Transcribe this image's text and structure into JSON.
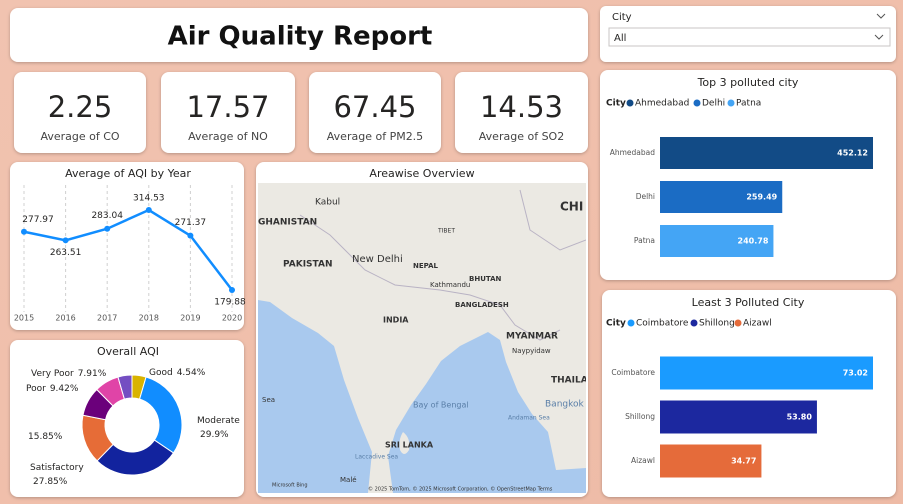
{
  "header": {
    "title": "Air Quality Report"
  },
  "filter": {
    "label": "City",
    "value": "All"
  },
  "kpis": [
    {
      "value": 2.25,
      "label": "Average of CO"
    },
    {
      "value": 17.57,
      "label": "Average of NO"
    },
    {
      "value": 67.45,
      "label": "Average of PM2.5"
    },
    {
      "value": 14.53,
      "label": "Average of SO2"
    }
  ],
  "chart_data": [
    {
      "type": "line",
      "title": "Average of AQI by Year",
      "categories": [
        "2015",
        "2016",
        "2017",
        "2018",
        "2019",
        "2020"
      ],
      "values": [
        277.97,
        263.51,
        283.04,
        314.53,
        271.37,
        179.88
      ],
      "color": "#118dff"
    },
    {
      "type": "donut",
      "title": "Overall AQI",
      "categories": [
        "Good",
        "Moderate",
        "Satisfactory",
        null,
        "Poor",
        "Very Poor",
        null
      ],
      "values": [
        4.54,
        29.9,
        27.85,
        15.85,
        9.42,
        7.91,
        4.53
      ],
      "value_labels": [
        "4.54%",
        "29.9%",
        "27.85%",
        "15.85%",
        "9.42%",
        "7.91%",
        null
      ],
      "colors": [
        "#d9b300",
        "#118dff",
        "#12239e",
        "#e66c37",
        "#6b007b",
        "#e044a7",
        "#744ec2"
      ]
    },
    {
      "type": "bar",
      "title": "Top 3 polluted city",
      "legend_title": "City",
      "categories": [
        "Ahmedabad",
        "Delhi",
        "Patna"
      ],
      "values": [
        452.12,
        259.49,
        240.78
      ],
      "colors": [
        "#124b86",
        "#1b6cc4",
        "#44a5f5"
      ]
    },
    {
      "type": "bar",
      "title": "Least 3 Polluted City",
      "legend_title": "City",
      "categories": [
        "Coimbatore",
        "Shillong",
        "Aizawl"
      ],
      "values": [
        73.02,
        53.8,
        34.77
      ],
      "value_labels": [
        "73.02",
        "53.80",
        "34.77"
      ],
      "colors": [
        "#1a9bff",
        "#1c289f",
        "#e56b3a"
      ]
    }
  ],
  "map": {
    "title": "Areawise Overview",
    "labels": [
      "Kabul",
      "GHANISTAN",
      "TIBET",
      "CHI",
      "PAKISTAN",
      "New Delhi",
      "NEPAL",
      "Kathmandu",
      "BHUTAN",
      "BANGLADESH",
      "INDIA",
      "MYANMAR",
      "Naypyidaw",
      "Sea",
      "Bay of Bengal",
      "THAILA",
      "Bangkok",
      "SRI LANKA",
      "Andaman Sea",
      "Laccadive Sea",
      "Malé",
      "Microsoft Bing",
      "© 2025 TomTom, © 2025 Microsoft Corporation, © OpenStreetMap Terms"
    ]
  }
}
